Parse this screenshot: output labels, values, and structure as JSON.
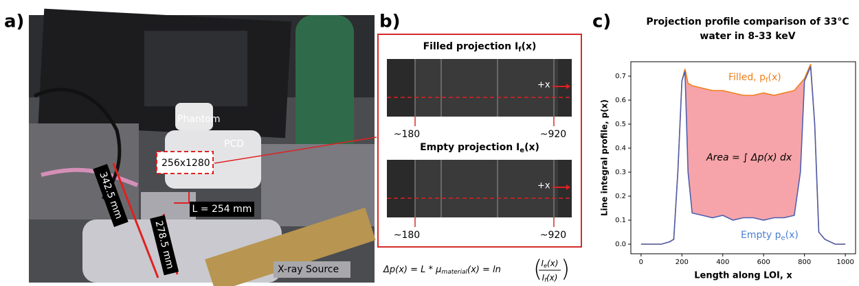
{
  "panels": {
    "a": {
      "label": "a)",
      "labels": {
        "phantom": "Phantom",
        "pcd": "PCD",
        "detector_size": "256x1280",
        "distance_1": "342.5 mm",
        "distance_2": "278.5 mm",
        "length": "L = 254 mm",
        "source": "X-ray Source"
      }
    },
    "b": {
      "label": "b)",
      "filled": {
        "title": "Filled projection I",
        "sub": "f",
        "rest": "(x)",
        "direction": "+x",
        "left_mark": "~180",
        "right_mark": "~920"
      },
      "empty": {
        "title": "Empty projection I",
        "sub": "e",
        "rest": "(x)",
        "direction": "+x",
        "left_mark": "~180",
        "right_mark": "~920"
      },
      "formula": {
        "lhs": "Δp(x) = L * μ",
        "lhs_sub": "material",
        "mid": "(x) = ln",
        "num": "I",
        "num_sub": "e",
        "num_rest": "(x)",
        "den": "I",
        "den_sub": "f",
        "den_rest": "(x)"
      }
    },
    "c": {
      "label": "c)"
    }
  },
  "chart_data": {
    "type": "line",
    "title": [
      "Projection profile comparison of 33°C",
      "water in 8-33 keV"
    ],
    "xlabel": "Length along LOI, x",
    "ylabel": "Line integral profile, p(x)",
    "x": [
      0,
      50,
      100,
      140,
      160,
      180,
      200,
      215,
      230,
      250,
      300,
      350,
      400,
      450,
      500,
      550,
      600,
      650,
      700,
      750,
      780,
      800,
      830,
      850,
      870,
      900,
      950,
      1000
    ],
    "series": [
      {
        "name": "Filled, p",
        "name_sub": "f",
        "name_rest": "(x)",
        "color": "#f07f1a",
        "values": [
          0,
          0,
          0,
          0.01,
          0.02,
          0.3,
          0.68,
          0.73,
          0.67,
          0.66,
          0.65,
          0.64,
          0.64,
          0.63,
          0.62,
          0.62,
          0.63,
          0.62,
          0.63,
          0.64,
          0.67,
          0.69,
          0.75,
          0.5,
          0.05,
          0.02,
          0,
          0
        ]
      },
      {
        "name": "Empty p",
        "name_sub": "e",
        "name_rest": "(x)",
        "color": "#4e5fb0",
        "label_color": "#4a7fd4",
        "values": [
          0,
          0,
          0,
          0.01,
          0.02,
          0.3,
          0.68,
          0.72,
          0.3,
          0.13,
          0.12,
          0.11,
          0.12,
          0.1,
          0.11,
          0.11,
          0.1,
          0.11,
          0.11,
          0.12,
          0.3,
          0.68,
          0.74,
          0.5,
          0.05,
          0.02,
          0,
          0
        ]
      }
    ],
    "area_color": "#f6a4a9",
    "area_formula": "Area = ∫ Δp(x) dx",
    "xlim": [
      -50,
      1050
    ],
    "ylim": [
      -0.04,
      0.76
    ],
    "xticks": [
      0,
      200,
      400,
      600,
      800,
      1000
    ],
    "yticks": [
      {
        "value": 0,
        "label": "0.0"
      },
      0.1,
      0.2,
      0.3,
      0.4,
      0.5,
      0.6,
      0.7
    ],
    "grid": false
  }
}
